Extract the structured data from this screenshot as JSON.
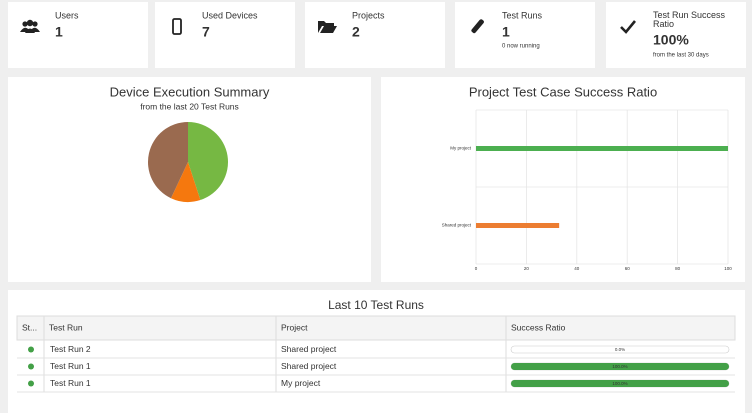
{
  "stats": [
    {
      "label": "Users",
      "value": 1
    },
    {
      "label": "Used Devices",
      "value": 7
    },
    {
      "label": "Projects",
      "value": 2
    },
    {
      "label": "Test Runs",
      "value": 1,
      "sub": "0 now running"
    },
    {
      "label": "Test Run Success Ratio",
      "value": "100%",
      "sub": "from the last 30 days"
    }
  ],
  "chart_data": [
    {
      "type": "pie",
      "title": "Device Execution Summary",
      "subtitle": "from the last 20 Test Runs",
      "values": [
        45,
        12,
        43
      ],
      "colors": [
        "#76b843",
        "#f5780e",
        "#9a6a4f"
      ]
    },
    {
      "type": "hbar",
      "title": "Project Test Case Success Ratio",
      "categories": [
        "My project",
        "Shared project"
      ],
      "values": [
        100,
        33
      ],
      "colors": [
        "#4caf50",
        "#ec7d31"
      ],
      "xlim": [
        0,
        100
      ],
      "xticks": [
        0,
        20,
        40,
        60,
        80,
        100
      ],
      "grid": true
    }
  ],
  "table": {
    "title": "Last 10 Test Runs",
    "headers": [
      "St...",
      "Test Run",
      "Project",
      "Success Ratio"
    ],
    "xlim": [
      0,
      100
    ],
    "rows": [
      {
        "status_color": "#43a047",
        "test_run": "Test Run 2",
        "project": "Shared project",
        "success_ratio": {
          "value": 0,
          "label": "0.0%"
        }
      },
      {
        "status_color": "#43a047",
        "test_run": "Test Run 1",
        "project": "Shared project",
        "success_ratio": {
          "value": 100,
          "label": "100.0%"
        }
      },
      {
        "status_color": "#43a047",
        "test_run": "Test Run 1",
        "project": "My project",
        "success_ratio": {
          "value": 100,
          "label": "100.0%"
        }
      }
    ]
  }
}
